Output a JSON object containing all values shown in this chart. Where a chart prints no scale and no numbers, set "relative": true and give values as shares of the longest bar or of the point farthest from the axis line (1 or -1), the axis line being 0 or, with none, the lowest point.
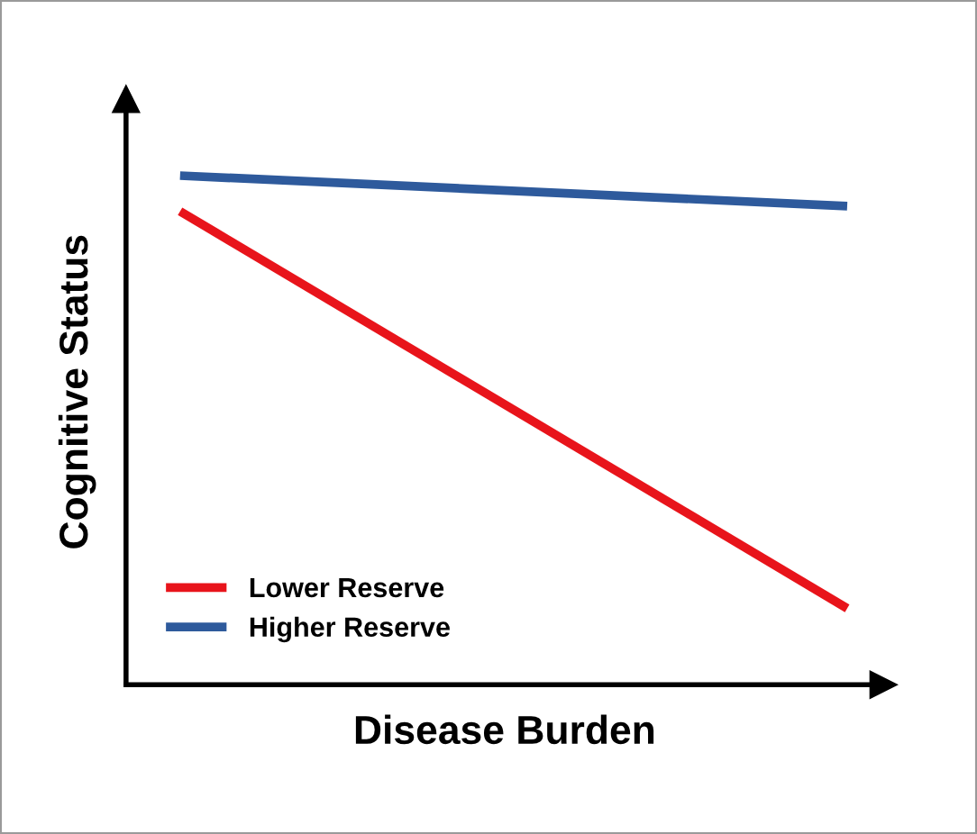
{
  "chart_data": {
    "type": "line",
    "xlabel": "Disease Burden",
    "ylabel": "Cognitive Status",
    "relative": true,
    "categories": [
      null,
      null
    ],
    "series": [
      {
        "name": "Lower Reserve",
        "color": "#e8141b",
        "values": [
          0.93,
          0.15
        ]
      },
      {
        "name": "Higher Reserve",
        "color": "#2e5a9c",
        "values": [
          1,
          0.94
        ]
      }
    ],
    "legend": "bottom left",
    "grid": false,
    "marker": "none",
    "line_style": "solid",
    "tick_labels": false
  }
}
